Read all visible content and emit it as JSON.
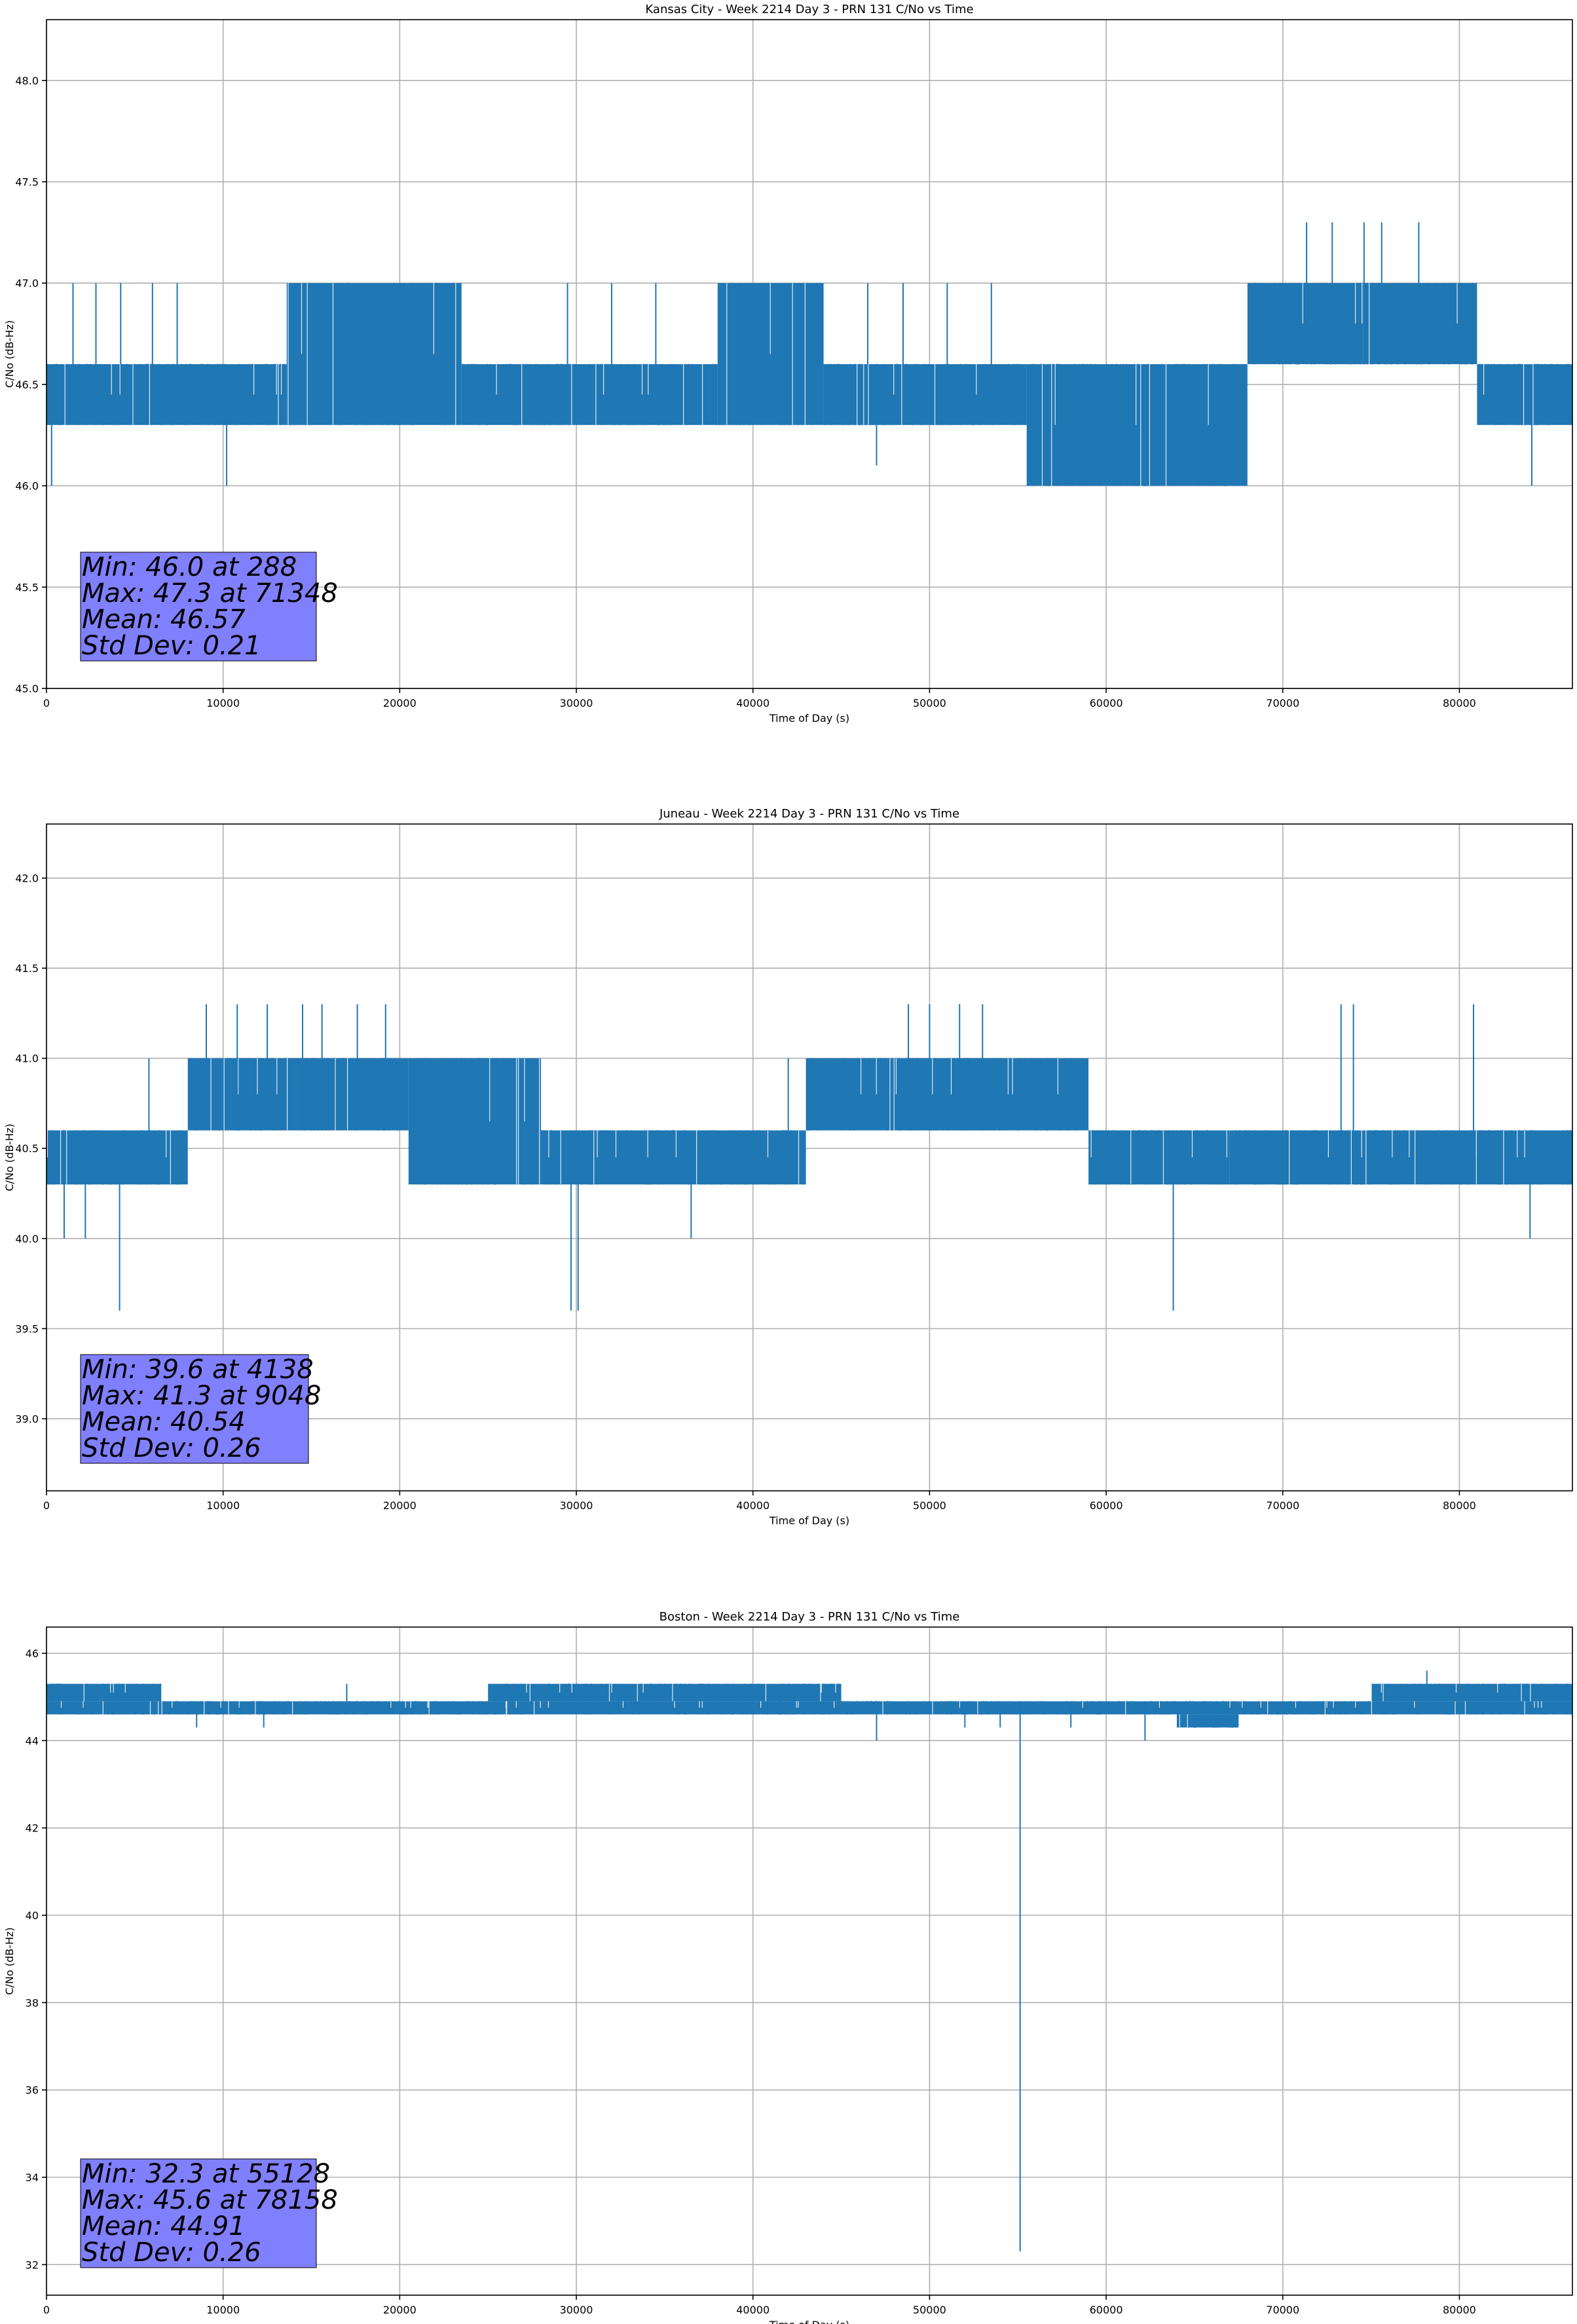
{
  "chart_data": [
    {
      "type": "line",
      "title": "Kansas City - Week 2214 Day 3 - PRN 131 C/No vs Time",
      "xlabel": "Time of Day (s)",
      "ylabel": "C/No (dB-Hz)",
      "xlim": [
        0,
        86400
      ],
      "ylim": [
        45.0,
        48.3
      ],
      "xticks": [
        0,
        10000,
        20000,
        30000,
        40000,
        50000,
        60000,
        70000,
        80000
      ],
      "yticks": [
        45.0,
        45.5,
        46.0,
        46.5,
        47.0,
        47.5,
        48.0
      ],
      "ytick_decimals": 1,
      "grid": true,
      "color": "#1f77b4",
      "base_level": 46.6,
      "segments": [
        {
          "x0": 0,
          "x1": 13600,
          "lo": 46.3,
          "hi": 46.6
        },
        {
          "x0": 13600,
          "x1": 23500,
          "lo": 46.3,
          "hi": 47.0
        },
        {
          "x0": 23500,
          "x1": 38000,
          "lo": 46.3,
          "hi": 46.6
        },
        {
          "x0": 38000,
          "x1": 44000,
          "lo": 46.3,
          "hi": 47.0
        },
        {
          "x0": 44000,
          "x1": 55500,
          "lo": 46.3,
          "hi": 46.6
        },
        {
          "x0": 55500,
          "x1": 68000,
          "lo": 46.0,
          "hi": 46.6
        },
        {
          "x0": 68000,
          "x1": 81000,
          "lo": 46.6,
          "hi": 47.0
        },
        {
          "x0": 81000,
          "x1": 86400,
          "lo": 46.3,
          "hi": 46.6
        }
      ],
      "spikes": [
        {
          "x": 288,
          "y": 46.0
        },
        {
          "x": 1500,
          "y": 47.0
        },
        {
          "x": 2800,
          "y": 47.0
        },
        {
          "x": 4200,
          "y": 47.0
        },
        {
          "x": 6000,
          "y": 47.0
        },
        {
          "x": 7400,
          "y": 47.0
        },
        {
          "x": 10200,
          "y": 46.0
        },
        {
          "x": 29500,
          "y": 47.0
        },
        {
          "x": 32000,
          "y": 47.0
        },
        {
          "x": 34500,
          "y": 47.0
        },
        {
          "x": 46500,
          "y": 47.0
        },
        {
          "x": 47000,
          "y": 46.1
        },
        {
          "x": 48500,
          "y": 47.0
        },
        {
          "x": 51000,
          "y": 47.0
        },
        {
          "x": 53500,
          "y": 47.0
        },
        {
          "x": 71348,
          "y": 47.3
        },
        {
          "x": 72800,
          "y": 47.3
        },
        {
          "x": 74600,
          "y": 47.3
        },
        {
          "x": 75600,
          "y": 47.3
        },
        {
          "x": 77700,
          "y": 47.3
        },
        {
          "x": 84100,
          "y": 46.0
        }
      ],
      "stats": {
        "min_text": "Min: 46.0 at 288",
        "max_text": "Max: 47.3 at 71348",
        "mean_text": "Mean: 46.57",
        "std_text": "Std Dev: 0.21",
        "box_color": "#8080ff"
      }
    },
    {
      "type": "line",
      "title": "Juneau - Week 2214 Day 3 - PRN 131 C/No vs Time",
      "xlabel": "Time of Day (s)",
      "ylabel": "C/No (dB-Hz)",
      "xlim": [
        0,
        86400
      ],
      "ylim": [
        38.6,
        42.3
      ],
      "xticks": [
        0,
        10000,
        20000,
        30000,
        40000,
        50000,
        60000,
        70000,
        80000
      ],
      "yticks": [
        39.0,
        39.5,
        40.0,
        40.5,
        41.0,
        41.5,
        42.0
      ],
      "ytick_decimals": 1,
      "grid": true,
      "color": "#1f77b4",
      "base_level": 40.6,
      "segments": [
        {
          "x0": 0,
          "x1": 8000,
          "lo": 40.3,
          "hi": 40.6
        },
        {
          "x0": 8000,
          "x1": 20500,
          "lo": 40.6,
          "hi": 41.0
        },
        {
          "x0": 20500,
          "x1": 28000,
          "lo": 40.3,
          "hi": 41.0
        },
        {
          "x0": 28000,
          "x1": 43000,
          "lo": 40.3,
          "hi": 40.6
        },
        {
          "x0": 43000,
          "x1": 59000,
          "lo": 40.6,
          "hi": 41.0
        },
        {
          "x0": 59000,
          "x1": 67000,
          "lo": 40.3,
          "hi": 40.6
        },
        {
          "x0": 67000,
          "x1": 86400,
          "lo": 40.3,
          "hi": 40.6
        }
      ],
      "spikes": [
        {
          "x": 4138,
          "y": 39.6
        },
        {
          "x": 1000,
          "y": 40.0
        },
        {
          "x": 2200,
          "y": 40.0
        },
        {
          "x": 5800,
          "y": 41.0
        },
        {
          "x": 9048,
          "y": 41.3
        },
        {
          "x": 10800,
          "y": 41.3
        },
        {
          "x": 12500,
          "y": 41.3
        },
        {
          "x": 14500,
          "y": 41.3
        },
        {
          "x": 15600,
          "y": 41.3
        },
        {
          "x": 17600,
          "y": 41.3
        },
        {
          "x": 19200,
          "y": 41.3
        },
        {
          "x": 29700,
          "y": 39.6
        },
        {
          "x": 30100,
          "y": 39.6
        },
        {
          "x": 36500,
          "y": 40.0
        },
        {
          "x": 42000,
          "y": 41.0
        },
        {
          "x": 48800,
          "y": 41.3
        },
        {
          "x": 50000,
          "y": 41.3
        },
        {
          "x": 51700,
          "y": 41.3
        },
        {
          "x": 53000,
          "y": 41.3
        },
        {
          "x": 63800,
          "y": 39.6
        },
        {
          "x": 73300,
          "y": 41.3
        },
        {
          "x": 74000,
          "y": 41.3
        },
        {
          "x": 80800,
          "y": 41.3
        },
        {
          "x": 84000,
          "y": 40.0
        }
      ],
      "stats": {
        "min_text": "Min: 39.6 at 4138",
        "max_text": "Max: 41.3 at 9048",
        "mean_text": "Mean: 40.54",
        "std_text": "Std Dev: 0.26",
        "box_color": "#8080ff"
      }
    },
    {
      "type": "line",
      "title": "Boston - Week 2214 Day 3 - PRN 131 C/No vs Time",
      "xlabel": "Time of Day (s)",
      "ylabel": "C/No (dB-Hz)",
      "xlim": [
        0,
        86400
      ],
      "ylim": [
        31.3,
        46.6
      ],
      "xticks": [
        0,
        10000,
        20000,
        30000,
        40000,
        50000,
        60000,
        70000,
        80000
      ],
      "yticks": [
        32,
        34,
        36,
        38,
        40,
        42,
        44,
        46
      ],
      "ytick_decimals": 0,
      "grid": true,
      "color": "#1f77b4",
      "base_level": 44.9,
      "segments": [
        {
          "x0": 0,
          "x1": 86400,
          "lo": 44.6,
          "hi": 44.9
        },
        {
          "x0": 0,
          "x1": 6500,
          "lo": 44.9,
          "hi": 45.3
        },
        {
          "x0": 25000,
          "x1": 45000,
          "lo": 44.9,
          "hi": 45.3
        },
        {
          "x0": 75000,
          "x1": 86400,
          "lo": 44.9,
          "hi": 45.3
        },
        {
          "x0": 64000,
          "x1": 67500,
          "lo": 44.3,
          "hi": 44.6
        }
      ],
      "spikes": [
        {
          "x": 55128,
          "y": 32.3
        },
        {
          "x": 78158,
          "y": 45.6
        },
        {
          "x": 47000,
          "y": 44.0
        },
        {
          "x": 62200,
          "y": 44.0
        },
        {
          "x": 8500,
          "y": 44.3
        },
        {
          "x": 12300,
          "y": 44.3
        },
        {
          "x": 17000,
          "y": 45.3
        },
        {
          "x": 52000,
          "y": 44.3
        },
        {
          "x": 54000,
          "y": 44.3
        },
        {
          "x": 58000,
          "y": 44.3
        }
      ],
      "stats": {
        "min_text": "Min: 32.3 at 55128",
        "max_text": "Max: 45.6 at 78158",
        "mean_text": "Mean: 44.91",
        "std_text": "Std Dev: 0.26",
        "box_color": "#8080ff"
      }
    }
  ]
}
